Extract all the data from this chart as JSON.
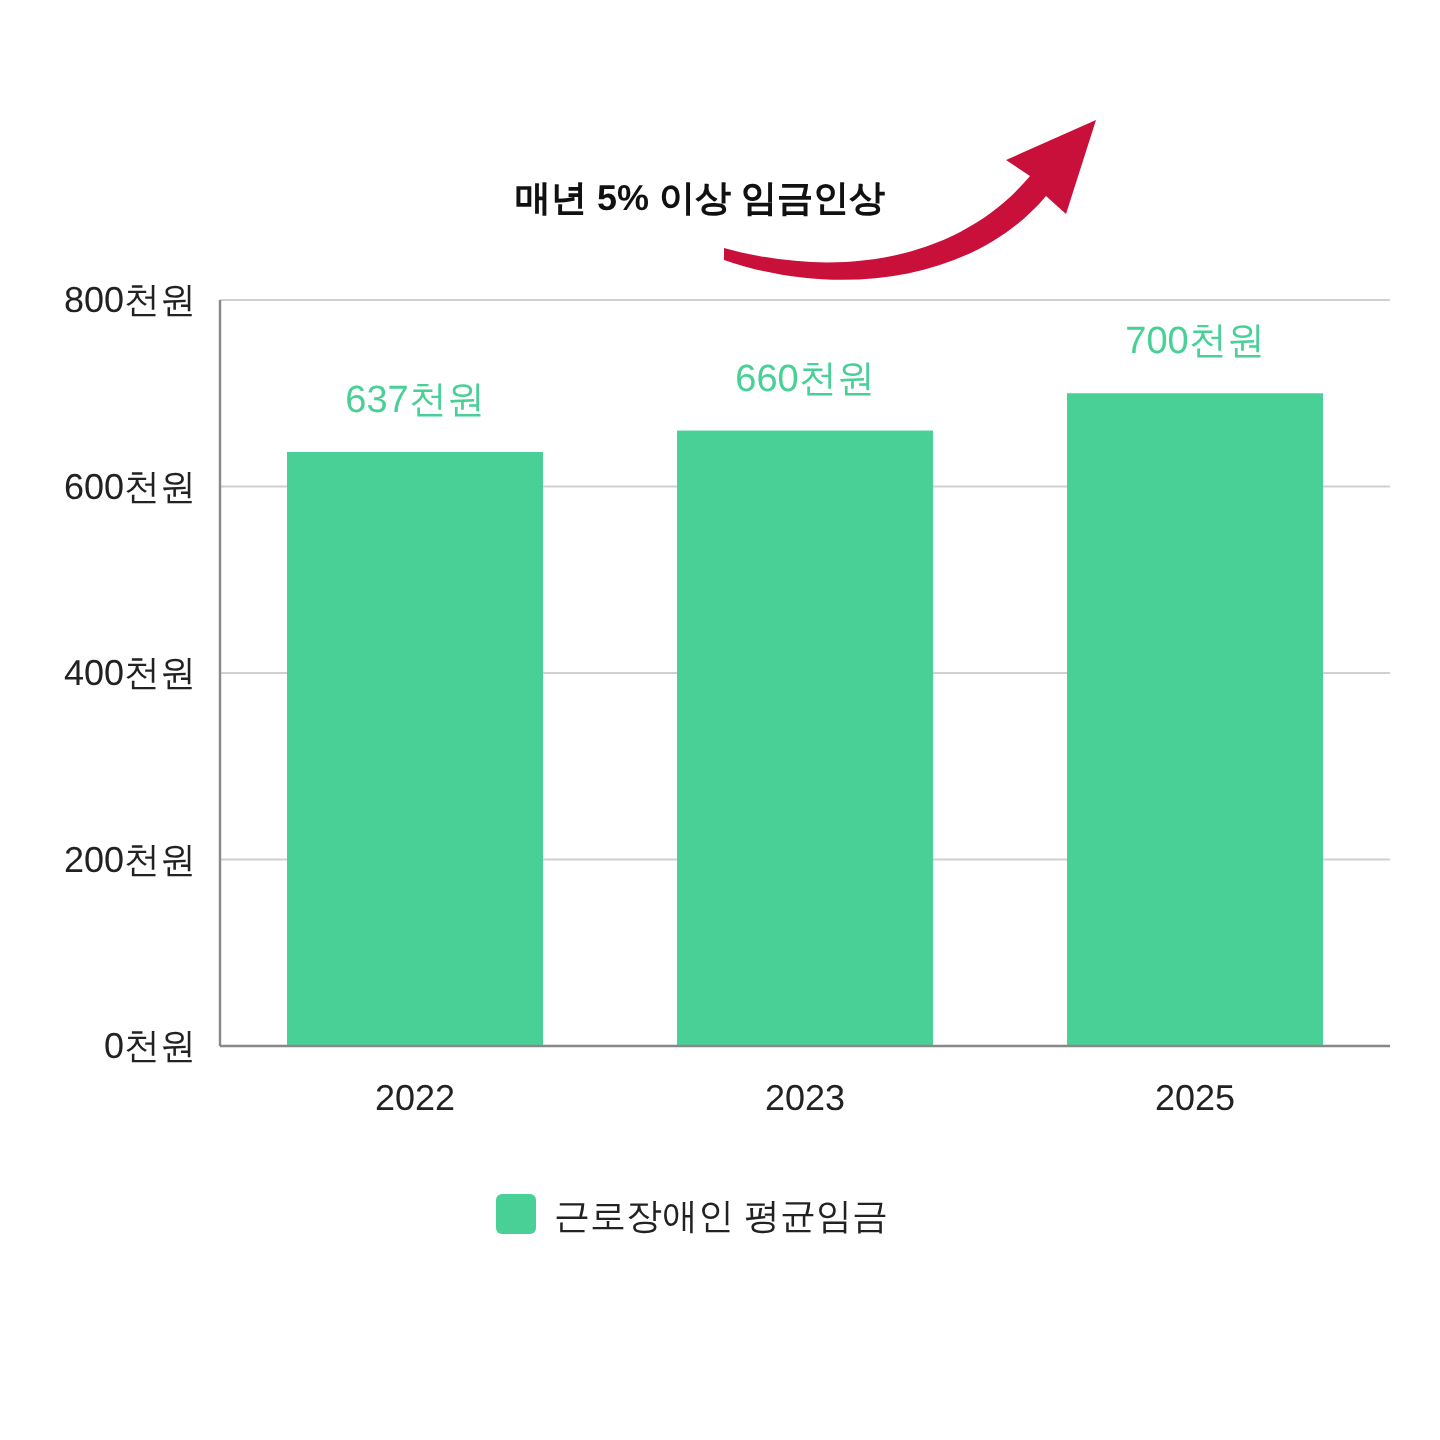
{
  "chart_data": {
    "type": "bar",
    "categories": [
      "2022",
      "2023",
      "2025"
    ],
    "series": [
      {
        "name": "근로장애인 평균임금",
        "color": "#48d097",
        "values": [
          637,
          660,
          700
        ],
        "value_labels": [
          "637천원",
          "660천원",
          "700천원"
        ]
      }
    ],
    "ylim": [
      0,
      800
    ],
    "yticks": [
      {
        "value": 0,
        "label": "0천원"
      },
      {
        "value": 200,
        "label": "200천원"
      },
      {
        "value": 400,
        "label": "400천원"
      },
      {
        "value": 600,
        "label": "600천원"
      },
      {
        "value": 800,
        "label": "800천원"
      }
    ],
    "grid": "y",
    "legend": "bottom",
    "annotations": [
      "매년 5% 이상 임금인상"
    ]
  }
}
